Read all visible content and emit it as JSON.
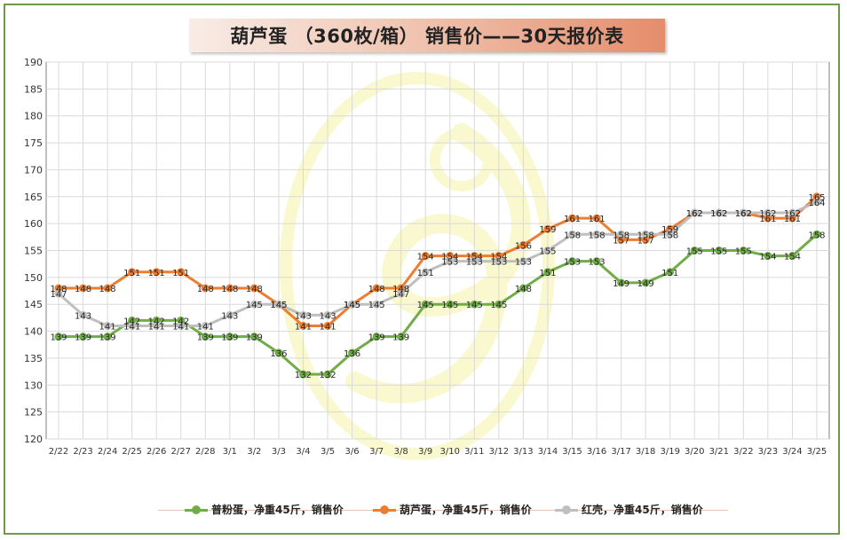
{
  "chart_data": {
    "type": "line",
    "title": "葫芦蛋 （360枚/箱） 销售价——30天报价表",
    "categories": [
      "2/22",
      "2/23",
      "2/24",
      "2/25",
      "2/26",
      "2/27",
      "2/28",
      "3/1",
      "3/2",
      "3/3",
      "3/4",
      "3/5",
      "3/6",
      "3/7",
      "3/8",
      "3/9",
      "3/10",
      "3/11",
      "3/12",
      "3/13",
      "3/14",
      "3/15",
      "3/16",
      "3/17",
      "3/18",
      "3/19",
      "3/20",
      "3/21",
      "3/22",
      "3/23",
      "3/24",
      "3/25"
    ],
    "ylim": [
      120,
      190
    ],
    "yticks": [
      120,
      125,
      130,
      135,
      140,
      145,
      150,
      155,
      160,
      165,
      170,
      175,
      180,
      185,
      190
    ],
    "grid": true,
    "legend_position": "bottom",
    "series": [
      {
        "name": "普粉蛋，净重45斤，销售价",
        "color": "#70ad47",
        "values": [
          139,
          139,
          139,
          142,
          142,
          142,
          139,
          139,
          139,
          136,
          132,
          132,
          136,
          139,
          139,
          145,
          145,
          145,
          145,
          148,
          151,
          153,
          153,
          149,
          149,
          151,
          155,
          155,
          155,
          154,
          154,
          158
        ]
      },
      {
        "name": "葫芦蛋，净重45斤，销售价",
        "color": "#ed7d31",
        "values": [
          148,
          148,
          148,
          151,
          151,
          151,
          148,
          148,
          148,
          145,
          141,
          141,
          145,
          148,
          148,
          154,
          154,
          154,
          154,
          156,
          159,
          161,
          161,
          157,
          157,
          159,
          162,
          162,
          162,
          161,
          161,
          165
        ]
      },
      {
        "name": "红壳，净重45斤，销售价",
        "color": "#bfbfbf",
        "values": [
          147,
          143,
          141,
          141,
          141,
          141,
          141,
          143,
          145,
          145,
          143,
          143,
          145,
          145,
          147,
          151,
          153,
          153,
          153,
          153,
          155,
          158,
          158,
          158,
          158,
          158,
          162,
          162,
          162,
          162,
          162,
          164
        ]
      }
    ]
  }
}
